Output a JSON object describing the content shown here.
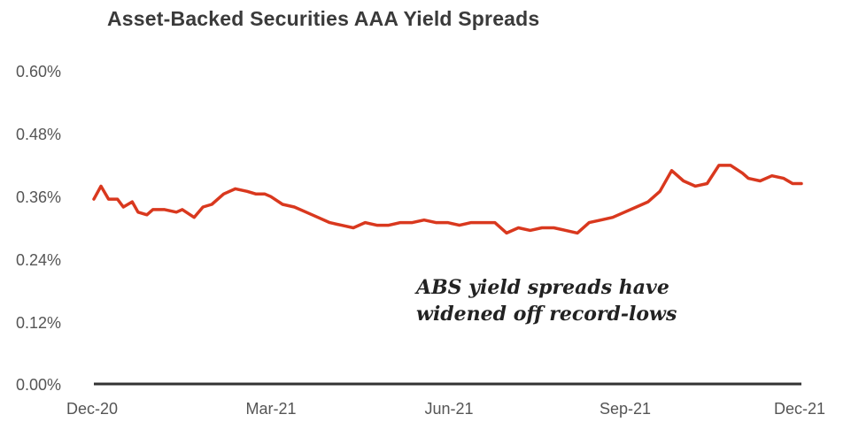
{
  "chart_data": {
    "type": "line",
    "title": "Asset-Backed Securities AAA Yield Spreads",
    "xlabel": "",
    "ylabel": "",
    "x_tick_labels": [
      "Dec-20",
      "Mar-21",
      "Jun-21",
      "Sep-21",
      "Dec-21"
    ],
    "y_tick_labels": [
      "0.00%",
      "0.12%",
      "0.24%",
      "0.36%",
      "0.48%",
      "0.60%"
    ],
    "y_ticks": [
      0,
      0.12,
      0.24,
      0.36,
      0.48,
      0.6
    ],
    "ylim": [
      0,
      0.6
    ],
    "xlim": [
      0,
      12
    ],
    "grid": false,
    "legend": "none",
    "line_color": "#d9381e",
    "annotation": [
      "ABS yield spreads have",
      "widened off record-lows"
    ],
    "series": [
      {
        "x": [
          0,
          0.12,
          0.25,
          0.4,
          0.5,
          0.65,
          0.75,
          0.9,
          1.0,
          1.2,
          1.4,
          1.5,
          1.7,
          1.85,
          2.0,
          2.2,
          2.4,
          2.6,
          2.75,
          2.9,
          3.0,
          3.2,
          3.4,
          3.6,
          3.8,
          4.0,
          4.2,
          4.4,
          4.6,
          4.8,
          5.0,
          5.2,
          5.4,
          5.6,
          5.8,
          6.0,
          6.2,
          6.4,
          6.6,
          6.8,
          7.0,
          7.2,
          7.4,
          7.6,
          7.8,
          8.0,
          8.2,
          8.4,
          8.6,
          8.8,
          9.0,
          9.2,
          9.4,
          9.6,
          9.8,
          10.0,
          10.2,
          10.4,
          10.6,
          10.8,
          11.0,
          11.1,
          11.3,
          11.5,
          11.7,
          11.85,
          12.0
        ],
        "values": [
          0.355,
          0.38,
          0.355,
          0.355,
          0.34,
          0.35,
          0.33,
          0.325,
          0.335,
          0.335,
          0.33,
          0.335,
          0.32,
          0.34,
          0.345,
          0.365,
          0.375,
          0.37,
          0.365,
          0.365,
          0.36,
          0.345,
          0.34,
          0.33,
          0.32,
          0.31,
          0.305,
          0.3,
          0.31,
          0.305,
          0.305,
          0.31,
          0.31,
          0.315,
          0.31,
          0.31,
          0.305,
          0.31,
          0.31,
          0.31,
          0.29,
          0.3,
          0.295,
          0.3,
          0.3,
          0.295,
          0.29,
          0.31,
          0.315,
          0.32,
          0.33,
          0.34,
          0.35,
          0.37,
          0.41,
          0.39,
          0.38,
          0.385,
          0.42,
          0.42,
          0.405,
          0.395,
          0.39,
          0.4,
          0.395,
          0.385,
          0.385
        ]
      }
    ]
  }
}
